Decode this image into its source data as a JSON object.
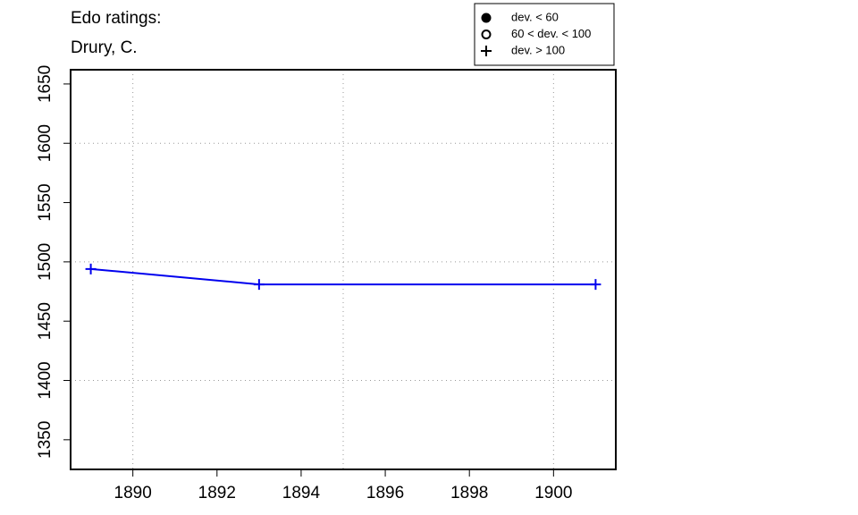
{
  "chart_data": {
    "type": "line",
    "title": [
      "Edo ratings:",
      "Drury, C."
    ],
    "x": [
      1889,
      1893,
      1901
    ],
    "series": [
      {
        "color": "#0000ee",
        "marker": "plus",
        "values": [
          1494,
          1481,
          1481
        ]
      }
    ],
    "xlim": [
      1888.52,
      1901.48
    ],
    "ylim": [
      1325,
      1662
    ],
    "xticks": [
      1890,
      1892,
      1894,
      1896,
      1898,
      1900
    ],
    "yticks": [
      1350,
      1400,
      1450,
      1500,
      1550,
      1600,
      1650
    ],
    "xgrid": [
      1890,
      1895,
      1900
    ],
    "ygrid": [
      1400,
      1500,
      1600
    ],
    "legend": [
      {
        "symbol": "filled-circle",
        "label": "dev. < 60"
      },
      {
        "symbol": "open-circle",
        "label": "60 < dev. < 100"
      },
      {
        "symbol": "plus",
        "label": "dev. > 100"
      }
    ]
  }
}
